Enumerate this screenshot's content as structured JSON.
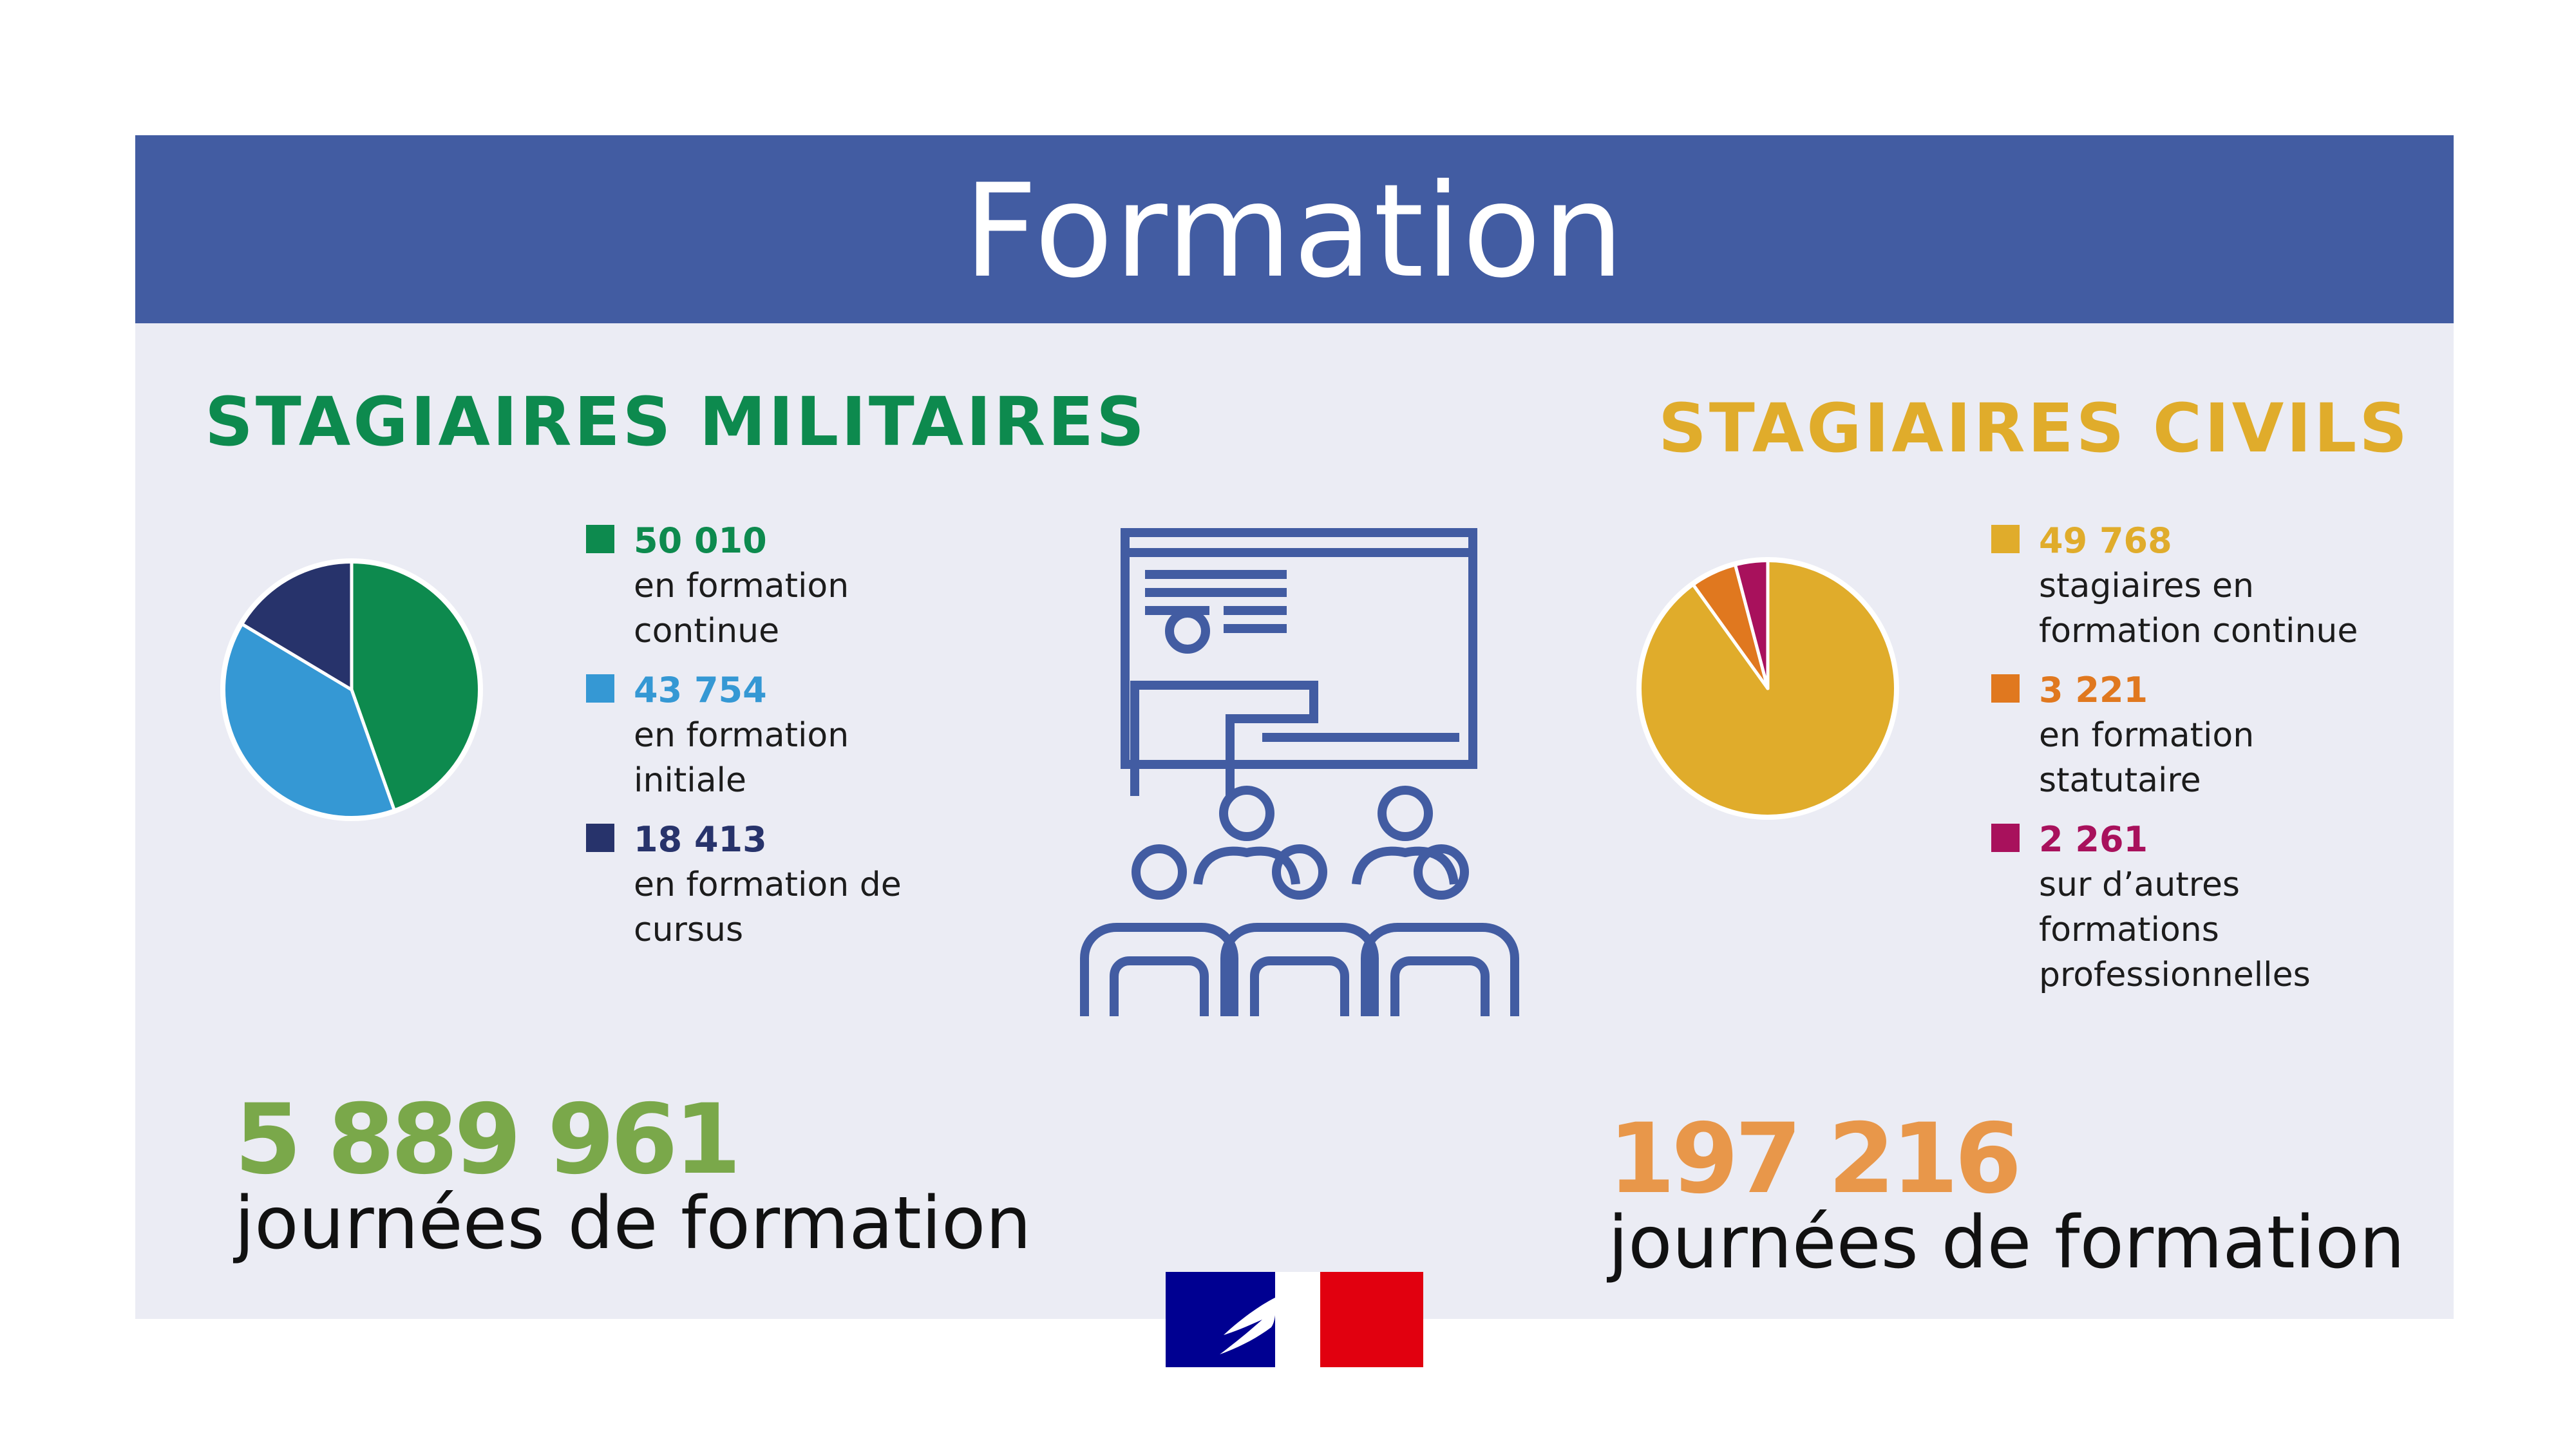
{
  "banner": {
    "title": "Formation",
    "color": "#425ca2"
  },
  "military": {
    "title": "STAGIAIRES MILITAIRES",
    "title_color": "#0d8a4e",
    "legend": [
      {
        "value": "50 010",
        "label": "en formation continue",
        "color": "#0d8a4e"
      },
      {
        "value": "43 754",
        "label": "en formation initiale",
        "color": "#3598d4"
      },
      {
        "value": "18 413",
        "label": "en formation de cursus",
        "color": "#27336b"
      }
    ],
    "days_value": "5 889 961",
    "days_value_color": "#7aa84a",
    "days_label": "journées de formation"
  },
  "civil": {
    "title": "STAGIAIRES CIVILS",
    "title_color": "#e0ac2b",
    "legend": [
      {
        "value": "49 768",
        "label": "stagiaires en formation continue",
        "color": "#e0ac2b"
      },
      {
        "value": "3 221",
        "label": "en formation statutaire",
        "color": "#e0781f"
      },
      {
        "value": "2 261",
        "label": "sur d’autres formations professionnelles",
        "color": "#a8115c"
      }
    ],
    "days_value": "197 216",
    "days_value_color": "#e8974a",
    "days_label": "journées de formation"
  },
  "icons": {
    "center": "classroom-teacher-icon",
    "logo": "marianne-flag-logo"
  },
  "chart_data": [
    {
      "type": "pie",
      "title": "",
      "categories": [
        "en formation continue",
        "en formation initiale",
        "en formation de cursus"
      ],
      "values": [
        50010,
        43754,
        18413
      ],
      "colors": [
        "#0d8a4e",
        "#3598d4",
        "#27336b"
      ],
      "legend": "right"
    },
    {
      "type": "pie",
      "title": "",
      "categories": [
        "stagiaires en formation continue",
        "en formation statutaire",
        "sur d’autres formations professionnelles"
      ],
      "values": [
        49768,
        3221,
        2261
      ],
      "colors": [
        "#e0ac2b",
        "#e0781f",
        "#a8115c"
      ],
      "legend": "right"
    }
  ]
}
